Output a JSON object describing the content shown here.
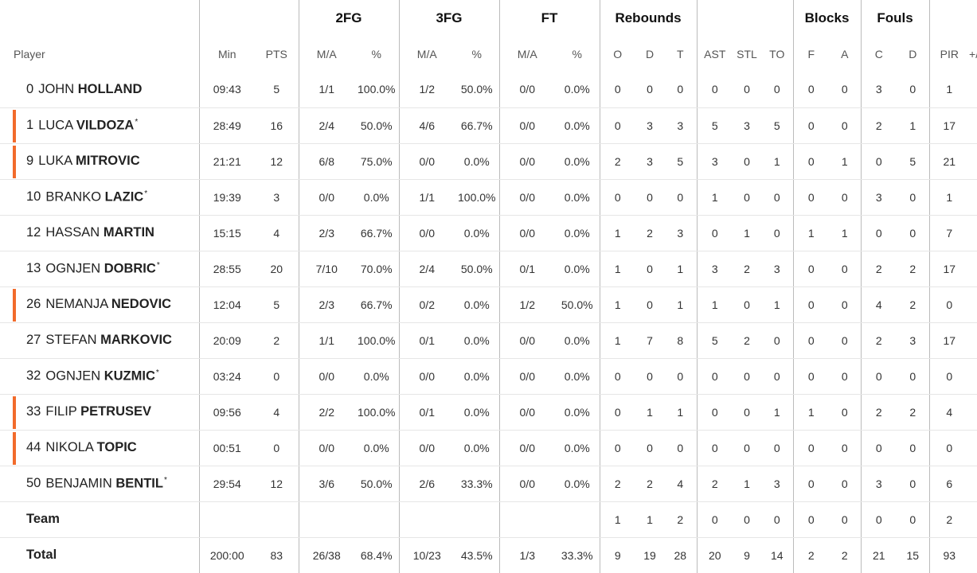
{
  "groups": {
    "fg2": "2FG",
    "fg3": "3FG",
    "ft": "FT",
    "rebounds": "Rebounds",
    "blocks": "Blocks",
    "fouls": "Fouls"
  },
  "columns": {
    "player": "Player",
    "min": "Min",
    "pts": "PTS",
    "fg2_ma": "M/A",
    "fg2_pct": "%",
    "fg3_ma": "M/A",
    "fg3_pct": "%",
    "ft_ma": "M/A",
    "ft_pct": "%",
    "reb_o": "O",
    "reb_d": "D",
    "reb_t": "T",
    "ast": "AST",
    "stl": "STL",
    "to": "TO",
    "blk_f": "F",
    "blk_a": "A",
    "foul_c": "C",
    "foul_d": "D",
    "pir": "PIR",
    "extra": "+/-"
  },
  "accent_color": "#f26b2b",
  "players": [
    {
      "num": "0",
      "first": "JOHN",
      "last": "HOLLAND",
      "starter": false,
      "accent": false,
      "min": "09:43",
      "pts": "5",
      "fg2_ma": "1/1",
      "fg2_pct": "100.0%",
      "fg3_ma": "1/2",
      "fg3_pct": "50.0%",
      "ft_ma": "0/0",
      "ft_pct": "0.0%",
      "reb_o": "0",
      "reb_d": "0",
      "reb_t": "0",
      "ast": "0",
      "stl": "0",
      "to": "0",
      "blk_f": "0",
      "blk_a": "0",
      "foul_c": "3",
      "foul_d": "0",
      "pir": "1"
    },
    {
      "num": "1",
      "first": "LUCA",
      "last": "VILDOZA",
      "starter": true,
      "accent": true,
      "min": "28:49",
      "pts": "16",
      "fg2_ma": "2/4",
      "fg2_pct": "50.0%",
      "fg3_ma": "4/6",
      "fg3_pct": "66.7%",
      "ft_ma": "0/0",
      "ft_pct": "0.0%",
      "reb_o": "0",
      "reb_d": "3",
      "reb_t": "3",
      "ast": "5",
      "stl": "3",
      "to": "5",
      "blk_f": "0",
      "blk_a": "0",
      "foul_c": "2",
      "foul_d": "1",
      "pir": "17"
    },
    {
      "num": "9",
      "first": "LUKA",
      "last": "MITROVIC",
      "starter": false,
      "accent": true,
      "min": "21:21",
      "pts": "12",
      "fg2_ma": "6/8",
      "fg2_pct": "75.0%",
      "fg3_ma": "0/0",
      "fg3_pct": "0.0%",
      "ft_ma": "0/0",
      "ft_pct": "0.0%",
      "reb_o": "2",
      "reb_d": "3",
      "reb_t": "5",
      "ast": "3",
      "stl": "0",
      "to": "1",
      "blk_f": "0",
      "blk_a": "1",
      "foul_c": "0",
      "foul_d": "5",
      "pir": "21"
    },
    {
      "num": "10",
      "first": "BRANKO",
      "last": "LAZIC",
      "starter": true,
      "accent": false,
      "min": "19:39",
      "pts": "3",
      "fg2_ma": "0/0",
      "fg2_pct": "0.0%",
      "fg3_ma": "1/1",
      "fg3_pct": "100.0%",
      "ft_ma": "0/0",
      "ft_pct": "0.0%",
      "reb_o": "0",
      "reb_d": "0",
      "reb_t": "0",
      "ast": "1",
      "stl": "0",
      "to": "0",
      "blk_f": "0",
      "blk_a": "0",
      "foul_c": "3",
      "foul_d": "0",
      "pir": "1"
    },
    {
      "num": "12",
      "first": "HASSAN",
      "last": "MARTIN",
      "starter": false,
      "accent": false,
      "min": "15:15",
      "pts": "4",
      "fg2_ma": "2/3",
      "fg2_pct": "66.7%",
      "fg3_ma": "0/0",
      "fg3_pct": "0.0%",
      "ft_ma": "0/0",
      "ft_pct": "0.0%",
      "reb_o": "1",
      "reb_d": "2",
      "reb_t": "3",
      "ast": "0",
      "stl": "1",
      "to": "0",
      "blk_f": "1",
      "blk_a": "1",
      "foul_c": "0",
      "foul_d": "0",
      "pir": "7"
    },
    {
      "num": "13",
      "first": "OGNJEN",
      "last": "DOBRIC",
      "starter": true,
      "accent": false,
      "min": "28:55",
      "pts": "20",
      "fg2_ma": "7/10",
      "fg2_pct": "70.0%",
      "fg3_ma": "2/4",
      "fg3_pct": "50.0%",
      "ft_ma": "0/1",
      "ft_pct": "0.0%",
      "reb_o": "1",
      "reb_d": "0",
      "reb_t": "1",
      "ast": "3",
      "stl": "2",
      "to": "3",
      "blk_f": "0",
      "blk_a": "0",
      "foul_c": "2",
      "foul_d": "2",
      "pir": "17"
    },
    {
      "num": "26",
      "first": "NEMANJA",
      "last": "NEDOVIC",
      "starter": false,
      "accent": true,
      "min": "12:04",
      "pts": "5",
      "fg2_ma": "2/3",
      "fg2_pct": "66.7%",
      "fg3_ma": "0/2",
      "fg3_pct": "0.0%",
      "ft_ma": "1/2",
      "ft_pct": "50.0%",
      "reb_o": "1",
      "reb_d": "0",
      "reb_t": "1",
      "ast": "1",
      "stl": "0",
      "to": "1",
      "blk_f": "0",
      "blk_a": "0",
      "foul_c": "4",
      "foul_d": "2",
      "pir": "0"
    },
    {
      "num": "27",
      "first": "STEFAN",
      "last": "MARKOVIC",
      "starter": false,
      "accent": false,
      "min": "20:09",
      "pts": "2",
      "fg2_ma": "1/1",
      "fg2_pct": "100.0%",
      "fg3_ma": "0/1",
      "fg3_pct": "0.0%",
      "ft_ma": "0/0",
      "ft_pct": "0.0%",
      "reb_o": "1",
      "reb_d": "7",
      "reb_t": "8",
      "ast": "5",
      "stl": "2",
      "to": "0",
      "blk_f": "0",
      "blk_a": "0",
      "foul_c": "2",
      "foul_d": "3",
      "pir": "17"
    },
    {
      "num": "32",
      "first": "OGNJEN",
      "last": "KUZMIC",
      "starter": true,
      "accent": false,
      "min": "03:24",
      "pts": "0",
      "fg2_ma": "0/0",
      "fg2_pct": "0.0%",
      "fg3_ma": "0/0",
      "fg3_pct": "0.0%",
      "ft_ma": "0/0",
      "ft_pct": "0.0%",
      "reb_o": "0",
      "reb_d": "0",
      "reb_t": "0",
      "ast": "0",
      "stl": "0",
      "to": "0",
      "blk_f": "0",
      "blk_a": "0",
      "foul_c": "0",
      "foul_d": "0",
      "pir": "0"
    },
    {
      "num": "33",
      "first": "FILIP",
      "last": "PETRUSEV",
      "starter": false,
      "accent": true,
      "min": "09:56",
      "pts": "4",
      "fg2_ma": "2/2",
      "fg2_pct": "100.0%",
      "fg3_ma": "0/1",
      "fg3_pct": "0.0%",
      "ft_ma": "0/0",
      "ft_pct": "0.0%",
      "reb_o": "0",
      "reb_d": "1",
      "reb_t": "1",
      "ast": "0",
      "stl": "0",
      "to": "1",
      "blk_f": "1",
      "blk_a": "0",
      "foul_c": "2",
      "foul_d": "2",
      "pir": "4"
    },
    {
      "num": "44",
      "first": "NIKOLA",
      "last": "TOPIC",
      "starter": false,
      "accent": true,
      "min": "00:51",
      "pts": "0",
      "fg2_ma": "0/0",
      "fg2_pct": "0.0%",
      "fg3_ma": "0/0",
      "fg3_pct": "0.0%",
      "ft_ma": "0/0",
      "ft_pct": "0.0%",
      "reb_o": "0",
      "reb_d": "0",
      "reb_t": "0",
      "ast": "0",
      "stl": "0",
      "to": "0",
      "blk_f": "0",
      "blk_a": "0",
      "foul_c": "0",
      "foul_d": "0",
      "pir": "0"
    },
    {
      "num": "50",
      "first": "BENJAMIN",
      "last": "BENTIL",
      "starter": true,
      "accent": false,
      "min": "29:54",
      "pts": "12",
      "fg2_ma": "3/6",
      "fg2_pct": "50.0%",
      "fg3_ma": "2/6",
      "fg3_pct": "33.3%",
      "ft_ma": "0/0",
      "ft_pct": "0.0%",
      "reb_o": "2",
      "reb_d": "2",
      "reb_t": "4",
      "ast": "2",
      "stl": "1",
      "to": "3",
      "blk_f": "0",
      "blk_a": "0",
      "foul_c": "3",
      "foul_d": "0",
      "pir": "6"
    }
  ],
  "team": {
    "label": "Team",
    "min": "",
    "pts": "",
    "fg2_ma": "",
    "fg2_pct": "",
    "fg3_ma": "",
    "fg3_pct": "",
    "ft_ma": "",
    "ft_pct": "",
    "reb_o": "1",
    "reb_d": "1",
    "reb_t": "2",
    "ast": "0",
    "stl": "0",
    "to": "0",
    "blk_f": "0",
    "blk_a": "0",
    "foul_c": "0",
    "foul_d": "0",
    "pir": "2"
  },
  "total": {
    "label": "Total",
    "min": "200:00",
    "pts": "83",
    "fg2_ma": "26/38",
    "fg2_pct": "68.4%",
    "fg3_ma": "10/23",
    "fg3_pct": "43.5%",
    "ft_ma": "1/3",
    "ft_pct": "33.3%",
    "reb_o": "9",
    "reb_d": "19",
    "reb_t": "28",
    "ast": "20",
    "stl": "9",
    "to": "14",
    "blk_f": "2",
    "blk_a": "2",
    "foul_c": "21",
    "foul_d": "15",
    "pir": "93"
  }
}
